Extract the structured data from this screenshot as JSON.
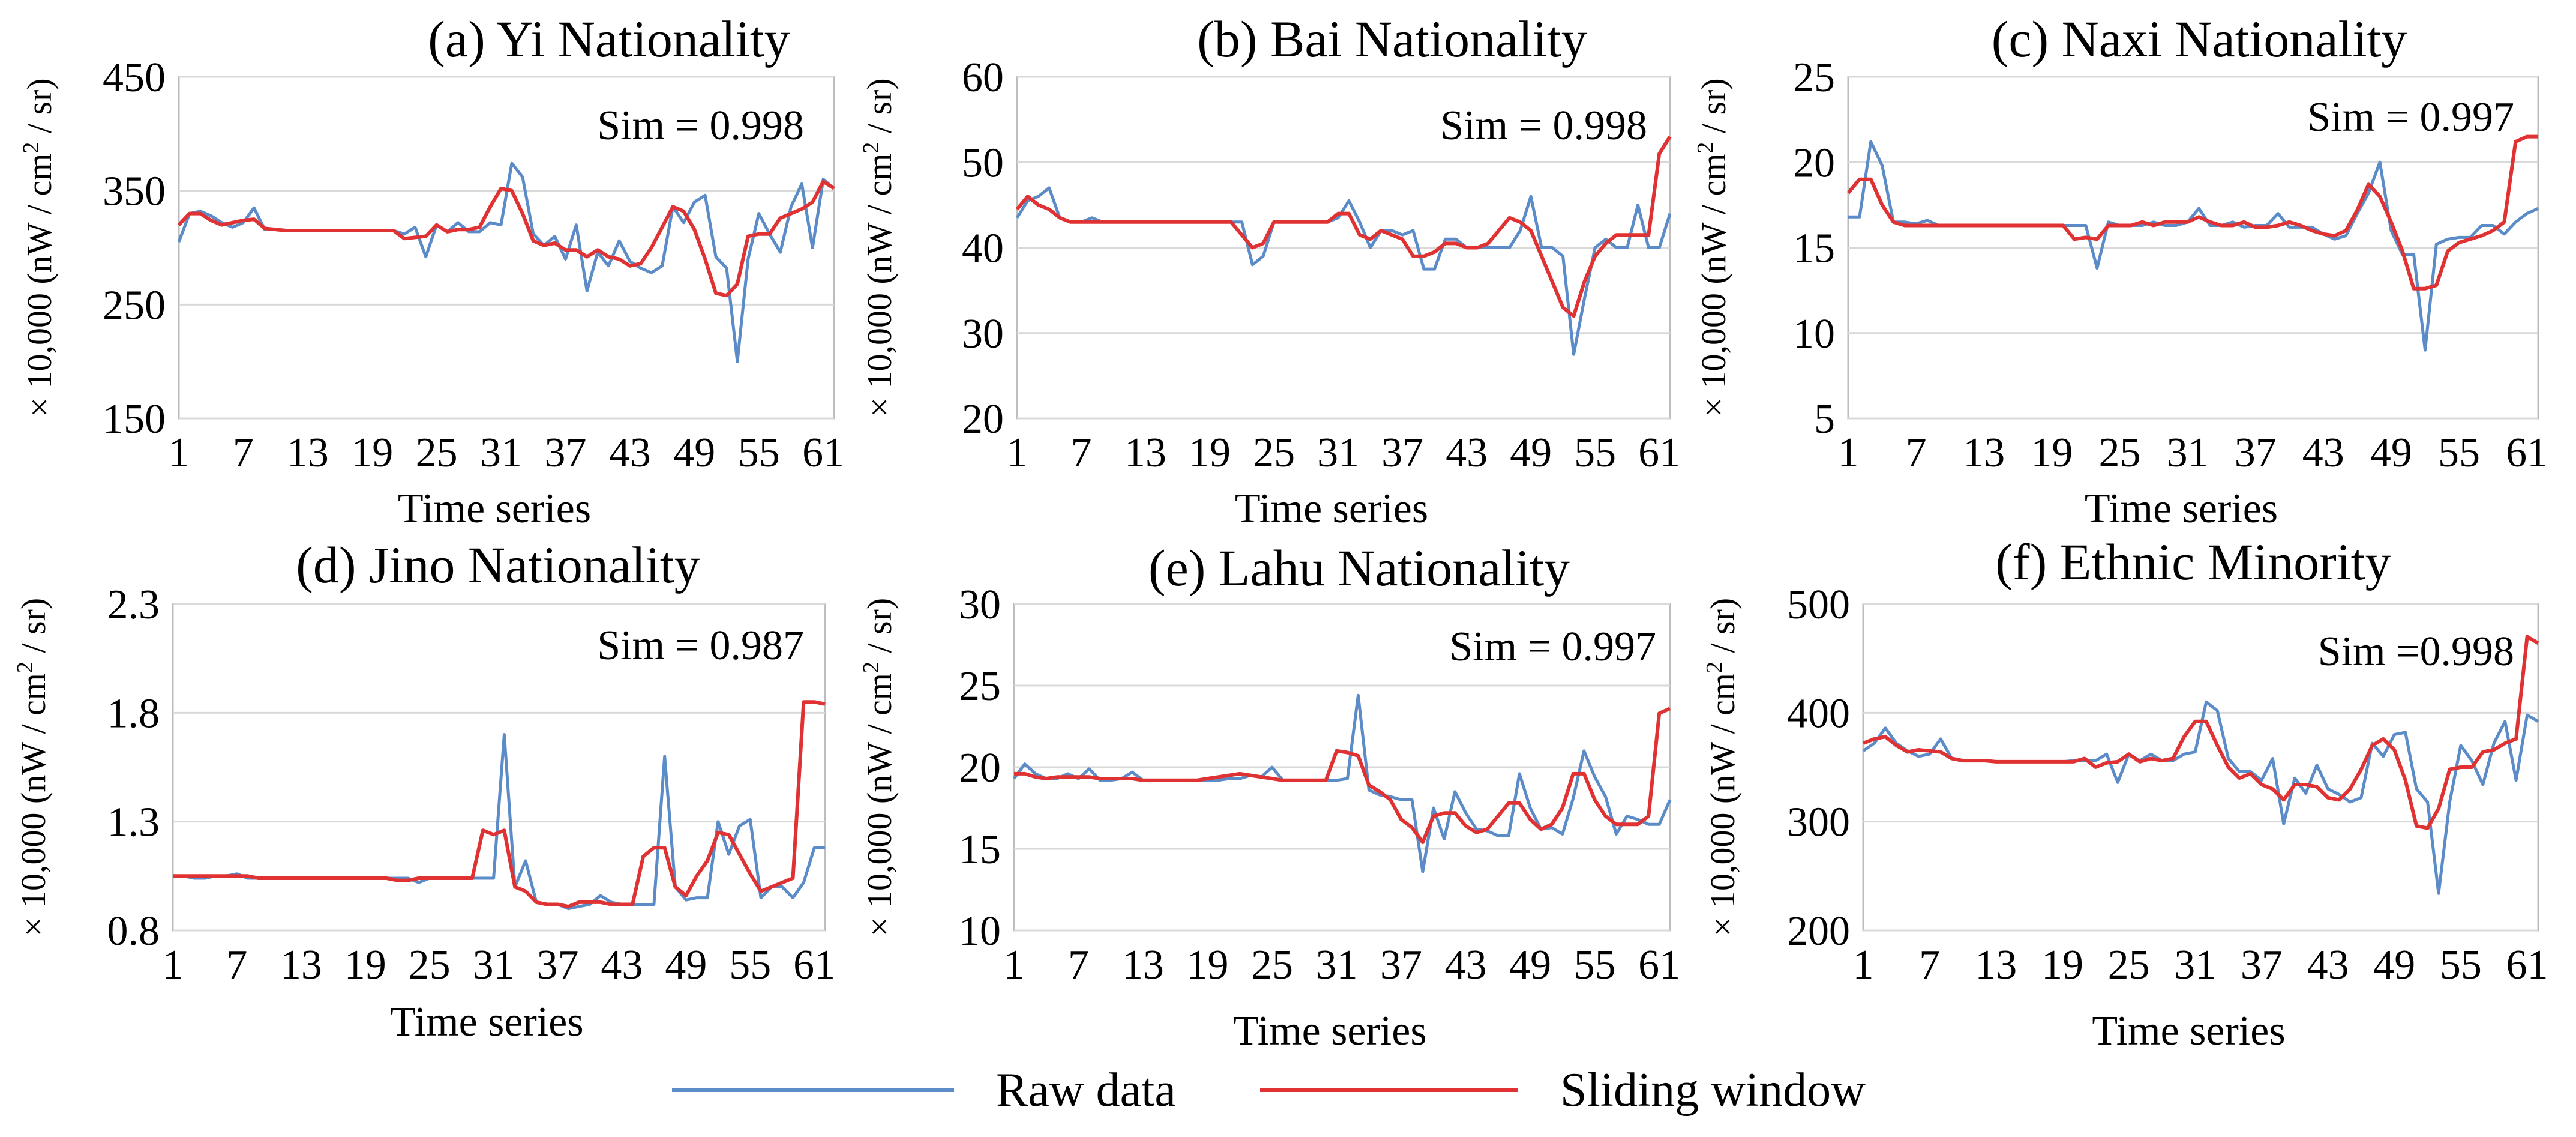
{
  "chart_data": [
    {
      "type": "line",
      "title": "(a) Yi Nationality",
      "xlabel": "Time series",
      "ylabel_prefix": "× 10,000 (nW / cm",
      "ylabel_sup": "2",
      "ylabel_suffix": " / sr)",
      "ylim": [
        150,
        450
      ],
      "yticks": [
        150,
        250,
        350,
        450
      ],
      "xticks": [
        1,
        7,
        13,
        19,
        25,
        31,
        37,
        43,
        49,
        55,
        61
      ],
      "xlim": [
        1,
        62
      ],
      "annotation": "Sim = 0.998",
      "series": [
        {
          "name": "Raw data",
          "color": "#5b8cc8",
          "values": [
            305,
            330,
            332,
            328,
            322,
            318,
            322,
            335,
            316,
            316,
            315,
            315,
            315,
            315,
            315,
            315,
            315,
            315,
            315,
            315,
            315,
            312,
            318,
            292,
            320,
            314,
            322,
            314,
            314,
            322,
            320,
            374,
            362,
            312,
            302,
            310,
            290,
            320,
            262,
            296,
            284,
            306,
            288,
            282,
            278,
            284,
            336,
            322,
            340,
            346,
            292,
            282,
            200,
            290,
            330,
            312,
            296,
            336,
            356,
            300,
            360,
            352
          ]
        },
        {
          "name": "Sliding window",
          "color": "#e03232",
          "values": [
            320,
            330,
            330,
            324,
            320,
            322,
            324,
            325,
            317,
            316,
            315,
            315,
            315,
            315,
            315,
            315,
            315,
            315,
            315,
            315,
            315,
            308,
            309,
            310,
            320,
            314,
            316,
            316,
            318,
            336,
            352,
            350,
            330,
            306,
            302,
            304,
            298,
            298,
            292,
            298,
            292,
            290,
            284,
            286,
            300,
            318,
            336,
            332,
            316,
            290,
            260,
            258,
            268,
            310,
            312,
            312,
            326,
            330,
            334,
            340,
            358,
            352
          ]
        }
      ]
    },
    {
      "type": "line",
      "title": "(b) Bai Nationality",
      "xlabel": "Time series",
      "ylabel_prefix": "× 10,000 (nW / cm",
      "ylabel_sup": "2",
      "ylabel_suffix": " / sr)",
      "ylim": [
        20,
        60
      ],
      "yticks": [
        20,
        30,
        40,
        50,
        60
      ],
      "xticks": [
        1,
        7,
        13,
        19,
        25,
        31,
        37,
        43,
        49,
        55,
        61
      ],
      "xlim": [
        1,
        62
      ],
      "annotation": "Sim = 0.998",
      "series": [
        {
          "name": "Raw data",
          "color": "#5b8cc8",
          "values": [
            43.5,
            45.5,
            46,
            47,
            43.5,
            43,
            43,
            43.5,
            43,
            43,
            43,
            43,
            43,
            43,
            43,
            43,
            43,
            43,
            43,
            43,
            43,
            43,
            38,
            39,
            43,
            43,
            43,
            43,
            43,
            43,
            43.5,
            45.5,
            43,
            40,
            42,
            42,
            41.5,
            42,
            37.5,
            37.5,
            41,
            41,
            40,
            40,
            40,
            40,
            40,
            42,
            46,
            40,
            40,
            39,
            27.5,
            34,
            40,
            41,
            40,
            40,
            45,
            40,
            40,
            44
          ]
        },
        {
          "name": "Sliding window",
          "color": "#e03232",
          "values": [
            44.5,
            46,
            45,
            44.5,
            43.5,
            43,
            43,
            43,
            43,
            43,
            43,
            43,
            43,
            43,
            43,
            43,
            43,
            43,
            43,
            43,
            43,
            41.5,
            40,
            40.5,
            43,
            43,
            43,
            43,
            43,
            43,
            44,
            44,
            41.5,
            41,
            42,
            41.5,
            41,
            39,
            39,
            39.5,
            40.5,
            40.5,
            40,
            40,
            40.5,
            42,
            43.5,
            43,
            42,
            39,
            36,
            33,
            32,
            36,
            39,
            40.5,
            41.5,
            41.5,
            41.5,
            41.5,
            51,
            53
          ]
        }
      ]
    },
    {
      "type": "line",
      "title": "(c) Naxi Nationality",
      "xlabel": "Time series",
      "ylabel_prefix": "× 10,000 (nW / cm",
      "ylabel_sup": "2",
      "ylabel_suffix": " / sr)",
      "ylim": [
        5,
        25
      ],
      "yticks": [
        5,
        10,
        15,
        20,
        25
      ],
      "xticks": [
        1,
        7,
        13,
        19,
        25,
        31,
        37,
        43,
        49,
        55,
        61
      ],
      "xlim": [
        1,
        62
      ],
      "annotation": "Sim = 0.997",
      "series": [
        {
          "name": "Raw data",
          "color": "#5b8cc8",
          "values": [
            16.8,
            16.8,
            21.2,
            19.8,
            16.5,
            16.5,
            16.4,
            16.6,
            16.3,
            16.3,
            16.3,
            16.3,
            16.3,
            16.3,
            16.3,
            16.3,
            16.3,
            16.3,
            16.3,
            16.3,
            16.3,
            16.3,
            13.8,
            16.5,
            16.3,
            16.3,
            16.3,
            16.5,
            16.3,
            16.3,
            16.5,
            17.3,
            16.3,
            16.3,
            16.5,
            16.2,
            16.3,
            16.3,
            17.0,
            16.2,
            16.2,
            16.2,
            15.8,
            15.5,
            15.7,
            17.0,
            18.2,
            20.0,
            16.0,
            14.6,
            14.6,
            9.0,
            15.2,
            15.5,
            15.6,
            15.6,
            16.3,
            16.3,
            15.8,
            16.5,
            17.0,
            17.3
          ]
        },
        {
          "name": "Sliding window",
          "color": "#e03232",
          "values": [
            18.2,
            19,
            19,
            17.5,
            16.5,
            16.3,
            16.3,
            16.3,
            16.3,
            16.3,
            16.3,
            16.3,
            16.3,
            16.3,
            16.3,
            16.3,
            16.3,
            16.3,
            16.3,
            16.3,
            15.5,
            15.6,
            15.5,
            16.3,
            16.3,
            16.3,
            16.5,
            16.3,
            16.5,
            16.5,
            16.5,
            16.8,
            16.5,
            16.3,
            16.3,
            16.5,
            16.2,
            16.2,
            16.3,
            16.5,
            16.3,
            16.0,
            15.8,
            15.7,
            16.0,
            17.2,
            18.7,
            18.0,
            16.5,
            14.8,
            12.6,
            12.6,
            12.8,
            14.8,
            15.3,
            15.5,
            15.7,
            16.0,
            16.5,
            21.2,
            21.5,
            21.5
          ]
        }
      ]
    },
    {
      "type": "line",
      "title": "(d) Jino Nationality",
      "xlabel": "Time series",
      "ylabel_prefix": "× 10,000 (nW / cm",
      "ylabel_sup": "2",
      "ylabel_suffix": " / sr)",
      "ylim": [
        0.8,
        2.3
      ],
      "yticks": [
        0.8,
        1.3,
        1.8,
        2.3
      ],
      "ytick_labels": [
        "0.8",
        "1.3",
        "1.8",
        "2.3"
      ],
      "xticks": [
        1,
        7,
        13,
        19,
        25,
        31,
        37,
        43,
        49,
        55,
        61
      ],
      "xlim": [
        1,
        62
      ],
      "annotation": "Sim = 0.987",
      "series": [
        {
          "name": "Raw data",
          "color": "#5b8cc8",
          "values": [
            1.05,
            1.05,
            1.04,
            1.04,
            1.05,
            1.05,
            1.06,
            1.04,
            1.04,
            1.04,
            1.04,
            1.04,
            1.04,
            1.04,
            1.04,
            1.04,
            1.04,
            1.04,
            1.04,
            1.04,
            1.04,
            1.04,
            1.04,
            1.02,
            1.04,
            1.04,
            1.04,
            1.04,
            1.04,
            1.04,
            1.04,
            1.7,
            1.0,
            1.12,
            0.93,
            0.92,
            0.92,
            0.9,
            0.91,
            0.92,
            0.96,
            0.93,
            0.92,
            0.92,
            0.92,
            0.92,
            1.6,
            1.0,
            0.94,
            0.95,
            0.95,
            1.3,
            1.15,
            1.28,
            1.31,
            0.95,
            1.0,
            1.0,
            0.95,
            1.02,
            1.18,
            1.18
          ]
        },
        {
          "name": "Sliding window",
          "color": "#e03232",
          "values": [
            1.05,
            1.05,
            1.05,
            1.05,
            1.05,
            1.05,
            1.05,
            1.05,
            1.04,
            1.04,
            1.04,
            1.04,
            1.04,
            1.04,
            1.04,
            1.04,
            1.04,
            1.04,
            1.04,
            1.04,
            1.04,
            1.03,
            1.03,
            1.04,
            1.04,
            1.04,
            1.04,
            1.04,
            1.04,
            1.26,
            1.24,
            1.26,
            1.0,
            0.98,
            0.93,
            0.92,
            0.92,
            0.91,
            0.93,
            0.93,
            0.93,
            0.92,
            0.92,
            0.92,
            1.14,
            1.18,
            1.18,
            1.0,
            0.96,
            1.05,
            1.12,
            1.25,
            1.24,
            1.15,
            1.06,
            0.98,
            1.0,
            1.02,
            1.04,
            1.85,
            1.85,
            1.84
          ]
        }
      ]
    },
    {
      "type": "line",
      "title": "(e) Lahu Nationality",
      "xlabel": "Time series",
      "ylabel_prefix": "× 10,000 (nW / cm",
      "ylabel_sup": "2",
      "ylabel_suffix": " / sr)",
      "ylim": [
        10,
        30
      ],
      "yticks": [
        10,
        15,
        20,
        25,
        30
      ],
      "xticks": [
        1,
        7,
        13,
        19,
        25,
        31,
        37,
        43,
        49,
        55,
        61
      ],
      "xlim": [
        1,
        62
      ],
      "annotation": "Sim = 0.997",
      "series": [
        {
          "name": "Raw data",
          "color": "#5b8cc8",
          "values": [
            19.3,
            20.2,
            19.6,
            19.3,
            19.3,
            19.6,
            19.3,
            19.9,
            19.2,
            19.2,
            19.3,
            19.7,
            19.2,
            19.2,
            19.2,
            19.2,
            19.2,
            19.2,
            19.2,
            19.2,
            19.3,
            19.3,
            19.5,
            19.4,
            20.0,
            19.2,
            19.2,
            19.2,
            19.2,
            19.2,
            19.2,
            19.3,
            24.4,
            18.6,
            18.3,
            18.2,
            18.0,
            18.0,
            13.6,
            17.5,
            15.6,
            18.5,
            17.2,
            16.2,
            16.1,
            15.8,
            15.8,
            19.6,
            17.5,
            16.2,
            16.3,
            15.9,
            18.1,
            21.0,
            19.4,
            18.2,
            15.9,
            17.0,
            16.8,
            16.5,
            16.5,
            18.0
          ]
        },
        {
          "name": "Sliding window",
          "color": "#e03232",
          "values": [
            19.6,
            19.6,
            19.4,
            19.3,
            19.4,
            19.4,
            19.4,
            19.4,
            19.3,
            19.3,
            19.3,
            19.3,
            19.2,
            19.2,
            19.2,
            19.2,
            19.2,
            19.2,
            19.3,
            19.4,
            19.5,
            19.6,
            19.5,
            19.4,
            19.3,
            19.2,
            19.2,
            19.2,
            19.2,
            19.2,
            21.0,
            20.9,
            20.7,
            18.9,
            18.5,
            18.0,
            16.8,
            16.3,
            15.4,
            17.0,
            17.2,
            17.2,
            16.4,
            16.0,
            16.2,
            17.0,
            17.8,
            17.8,
            16.8,
            16.2,
            16.5,
            17.5,
            19.6,
            19.6,
            18.0,
            17.0,
            16.5,
            16.5,
            16.5,
            17.0,
            23.3,
            23.6
          ]
        }
      ]
    },
    {
      "type": "line",
      "title": "(f) Ethnic Minority",
      "xlabel": "Time series",
      "ylabel_prefix": "× 10,000 (nW / cm",
      "ylabel_sup": "2",
      "ylabel_suffix": " / sr)",
      "ylim": [
        200,
        500
      ],
      "yticks": [
        200,
        300,
        400,
        500
      ],
      "xticks": [
        1,
        7,
        13,
        19,
        25,
        31,
        37,
        43,
        49,
        55,
        61
      ],
      "xlim": [
        1,
        62
      ],
      "annotation": "Sim =0.998",
      "series": [
        {
          "name": "Raw data",
          "color": "#5b8cc8",
          "values": [
            365,
            372,
            386,
            372,
            365,
            360,
            362,
            376,
            358,
            356,
            356,
            356,
            355,
            355,
            355,
            355,
            355,
            355,
            355,
            356,
            356,
            356,
            362,
            336,
            362,
            356,
            362,
            356,
            356,
            362,
            364,
            410,
            402,
            358,
            346,
            346,
            338,
            358,
            298,
            340,
            326,
            352,
            330,
            325,
            318,
            322,
            372,
            360,
            380,
            382,
            330,
            318,
            234,
            318,
            370,
            356,
            334,
            372,
            392,
            338,
            398,
            392
          ]
        },
        {
          "name": "Sliding window",
          "color": "#e03232",
          "values": [
            372,
            376,
            378,
            370,
            364,
            366,
            365,
            364,
            358,
            356,
            356,
            356,
            355,
            355,
            355,
            355,
            355,
            355,
            355,
            355,
            358,
            350,
            354,
            355,
            362,
            355,
            358,
            356,
            358,
            378,
            392,
            392,
            370,
            350,
            340,
            344,
            334,
            330,
            320,
            334,
            334,
            332,
            322,
            320,
            330,
            348,
            370,
            376,
            366,
            338,
            296,
            294,
            312,
            348,
            350,
            350,
            364,
            366,
            372,
            376,
            470,
            464
          ]
        }
      ]
    }
  ],
  "legend": {
    "items": [
      {
        "label": "Raw data",
        "color": "#5b8cc8"
      },
      {
        "label": "Sliding window",
        "color": "#e03232"
      }
    ]
  }
}
